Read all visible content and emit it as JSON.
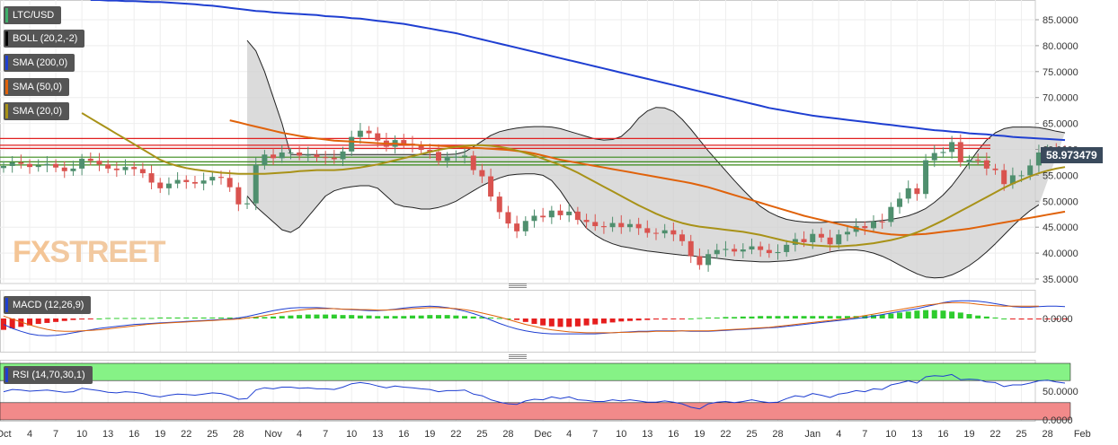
{
  "panel": {
    "symbol": "LTC/USD",
    "watermark_fx": "FX",
    "watermark_street": "STREET",
    "current_price": "58.973479",
    "indicators": [
      {
        "label": "BOLL (20,2,-2)",
        "color": "#000000"
      },
      {
        "label": "SMA (200,0)",
        "color": "#1f3fd1"
      },
      {
        "label": "SMA (50,0)",
        "color": "#e0620a"
      },
      {
        "label": "SMA (20,0)",
        "color": "#a89218"
      }
    ],
    "macd_label": "MACD (12,26,9)",
    "rsi_label": "RSI (14,70,30,1)"
  },
  "chart_data": [
    {
      "type": "candlestick",
      "title": "LTC/USD",
      "ylim": [
        35,
        89
      ],
      "y_ticks": [
        "85.0000",
        "80.0000",
        "75.0000",
        "70.0000",
        "65.0000",
        "60.0000",
        "55.0000",
        "50.0000",
        "45.0000",
        "40.0000",
        "35.0000"
      ],
      "y_tick_values": [
        85,
        80,
        75,
        70,
        65,
        60,
        55,
        50,
        45,
        40,
        35
      ],
      "x_ticks": [
        "Oct",
        "4",
        "7",
        "10",
        "13",
        "16",
        "19",
        "22",
        "25",
        "28",
        "Nov",
        "4",
        "7",
        "10",
        "13",
        "16",
        "19",
        "22",
        "25",
        "28",
        "Dec",
        "4",
        "7",
        "10",
        "13",
        "16",
        "19",
        "22",
        "25",
        "28",
        "Jan",
        "4",
        "7",
        "10",
        "13",
        "16",
        "19",
        "22",
        "25",
        "28",
        "Feb"
      ],
      "x_tick_index": [
        0,
        3,
        6,
        9,
        12,
        15,
        18,
        21,
        24,
        27,
        31,
        34,
        37,
        40,
        43,
        46,
        49,
        52,
        55,
        58,
        62,
        65,
        68,
        71,
        74,
        77,
        80,
        83,
        86,
        89,
        93,
        96,
        99,
        102,
        105,
        108,
        111,
        114,
        117,
        120,
        124
      ],
      "close": [
        56.8,
        57.5,
        57.2,
        56.6,
        56.9,
        57.2,
        56.5,
        55.8,
        56.3,
        58.2,
        57.8,
        57.1,
        56.3,
        56.0,
        56.6,
        56.2,
        55.4,
        53.6,
        52.5,
        53.4,
        54.1,
        53.7,
        53.4,
        54.0,
        54.7,
        54.5,
        52.7,
        49.4,
        49.6,
        57.0,
        59.0,
        58.3,
        59.4,
        59.4,
        58.8,
        59.0,
        58.5,
        58.4,
        58.1,
        59.6,
        62.4,
        63.6,
        63.1,
        61.7,
        60.5,
        61.8,
        61.1,
        60.7,
        59.9,
        59.5,
        57.8,
        58.6,
        58.6,
        58.8,
        56.0,
        54.8,
        50.9,
        47.9,
        45.7,
        44.2,
        46.2,
        47.2,
        46.9,
        48.2,
        47.3,
        48.0,
        46.4,
        46.0,
        45.2,
        45.0,
        45.8,
        45.0,
        45.6,
        44.8,
        43.9,
        43.8,
        44.4,
        43.6,
        42.3,
        39.4,
        37.7,
        39.8,
        40.6,
        40.8,
        40.3,
        40.7,
        41.3,
        40.6,
        40.0,
        40.2,
        41.6,
        42.7,
        42.1,
        43.7,
        43.0,
        41.7,
        43.6,
        44.1,
        45.2,
        44.8,
        46.1,
        46.0,
        48.9,
        50.5,
        52.5,
        51.4,
        57.9,
        59.3,
        59.5,
        61.4,
        57.5,
        58.0,
        57.9,
        56.3,
        56.0,
        53.3,
        55.0,
        55.0,
        56.9,
        59.4,
        60.0,
        59.3,
        58.97
      ],
      "sma_200": [
        88.8,
        88.8,
        88.7,
        88.7,
        88.6,
        88.6,
        88.5,
        88.4,
        88.4,
        88.3,
        88.2,
        88.1,
        88.0,
        87.8,
        87.7,
        87.5,
        87.3,
        87.1,
        86.9,
        86.7,
        86.6,
        86.4,
        86.3,
        86.2,
        86.1,
        86.0,
        85.9,
        85.7,
        85.6,
        85.5,
        85.3,
        85.2,
        85.0,
        84.8,
        84.6,
        84.4,
        84.2,
        83.9,
        83.6,
        83.3,
        83.0,
        82.7,
        82.4,
        82.0,
        81.6,
        81.2,
        80.8,
        80.4,
        80.0,
        79.6,
        79.2,
        78.8,
        78.4,
        78.0,
        77.6,
        77.2,
        76.8,
        76.4,
        76.0,
        75.6,
        75.2,
        74.8,
        74.4,
        74.0,
        73.6,
        73.2,
        72.8,
        72.4,
        72.0,
        71.6,
        71.2,
        70.8,
        70.4,
        70.0,
        69.6,
        69.2,
        68.8,
        68.4,
        68.0,
        67.7,
        67.4,
        67.1,
        66.8,
        66.5,
        66.3,
        66.1,
        65.9,
        65.7,
        65.5,
        65.3,
        65.1,
        64.9,
        64.7,
        64.5,
        64.3,
        64.1,
        63.9,
        63.7,
        63.6,
        63.4,
        63.3,
        63.1,
        63.0,
        62.9,
        62.7,
        62.6,
        62.4,
        62.3,
        62.2,
        62.1,
        62.0,
        61.9,
        61.8
      ],
      "sma_50": [
        65.6,
        65.2,
        64.8,
        64.4,
        64.0,
        63.6,
        63.2,
        62.9,
        62.6,
        62.3,
        62.1,
        61.9,
        61.7,
        61.6,
        61.5,
        61.4,
        61.3,
        61.2,
        61.1,
        61.1,
        61.0,
        60.9,
        60.8,
        60.8,
        60.7,
        60.6,
        60.5,
        60.4,
        60.3,
        60.2,
        60.1,
        60.0,
        59.9,
        59.7,
        59.5,
        59.2,
        58.8,
        58.4,
        58.0,
        57.7,
        57.4,
        57.1,
        56.8,
        56.5,
        56.2,
        55.9,
        55.6,
        55.3,
        55.0,
        54.7,
        54.4,
        54.1,
        53.8,
        53.5,
        53.1,
        52.7,
        52.2,
        51.7,
        51.2,
        50.7,
        50.2,
        49.7,
        49.2,
        48.7,
        48.2,
        47.7,
        47.2,
        46.8,
        46.4,
        46.0,
        45.6,
        45.2,
        44.8,
        44.4,
        44.1,
        43.8,
        43.6,
        43.5,
        43.5,
        43.6,
        43.7,
        43.9,
        44.1,
        44.3,
        44.5,
        44.7,
        45.0,
        45.3,
        45.6,
        45.9,
        46.2,
        46.5,
        46.8,
        47.1,
        47.4,
        47.7,
        48.0
      ],
      "sma_20": [
        67.0,
        66.0,
        65.0,
        64.0,
        63.0,
        62.0,
        61.0,
        60.0,
        59.0,
        58.0,
        57.3,
        56.8,
        56.4,
        56.1,
        55.9,
        55.7,
        55.5,
        55.4,
        55.3,
        55.3,
        55.3,
        55.3,
        55.4,
        55.5,
        55.6,
        55.8,
        55.9,
        56.0,
        56.0,
        56.0,
        56.1,
        56.3,
        56.5,
        56.8,
        57.1,
        57.5,
        57.9,
        58.3,
        58.7,
        59.1,
        59.5,
        59.9,
        60.2,
        60.5,
        60.7,
        60.8,
        60.8,
        60.7,
        60.5,
        60.2,
        59.8,
        59.3,
        58.8,
        58.2,
        57.6,
        57.0,
        56.3,
        55.5,
        54.6,
        53.7,
        52.8,
        51.9,
        51.0,
        50.1,
        49.2,
        48.4,
        47.6,
        46.9,
        46.3,
        45.8,
        45.4,
        45.1,
        44.9,
        44.7,
        44.5,
        44.3,
        44.1,
        43.8,
        43.5,
        43.1,
        42.7,
        42.3,
        42.0,
        41.7,
        41.5,
        41.4,
        41.3,
        41.3,
        41.4,
        41.5,
        41.7,
        41.9,
        42.2,
        42.5,
        42.9,
        43.4,
        44.0,
        44.7,
        45.5,
        46.3,
        47.2,
        48.1,
        49.0,
        49.9,
        50.8,
        51.7,
        52.6,
        53.4,
        54.1,
        54.8,
        55.4,
        55.9,
        56.3,
        56.6
      ],
      "boll_upper": [
        81.0,
        79.0,
        75.0,
        70.0,
        65.0,
        59.0,
        59.0,
        59.0,
        59.0,
        59.0,
        59.0,
        59.0,
        59.0,
        59.0,
        59.0,
        59.0,
        59.0,
        59.0,
        59.0,
        59.0,
        59.0,
        59.0,
        59.0,
        59.0,
        59.1,
        59.5,
        60.5,
        61.6,
        62.7,
        63.4,
        63.8,
        64.1,
        64.3,
        64.4,
        64.4,
        64.3,
        64.0,
        63.5,
        63.0,
        62.5,
        62.0,
        61.8,
        61.9,
        62.5,
        64.0,
        66.0,
        67.4,
        68.1,
        68.0,
        67.3,
        65.8,
        63.9,
        61.8,
        59.7,
        57.8,
        55.9,
        54.0,
        52.2,
        50.5,
        49.0,
        47.9,
        47.1,
        46.5,
        46.2,
        46.0,
        45.9,
        45.9,
        46.0,
        46.0,
        46.0,
        46.0,
        46.0,
        46.1,
        46.3,
        46.5,
        46.8,
        47.2,
        47.8,
        48.6,
        49.8,
        51.2,
        53.0,
        55.2,
        57.5,
        59.8,
        61.8,
        63.2,
        64.0,
        64.3,
        64.3,
        64.3,
        64.2,
        63.9,
        63.5,
        63.2
      ],
      "boll_lower": [
        51.0,
        49.0,
        47.5,
        46.0,
        44.5,
        44.0,
        45.0,
        47.0,
        49.0,
        51.0,
        52.0,
        52.5,
        52.8,
        53.0,
        53.0,
        52.5,
        51.0,
        49.5,
        49.0,
        48.8,
        48.5,
        48.5,
        48.8,
        49.3,
        50.0,
        51.0,
        52.0,
        53.0,
        53.8,
        54.5,
        55.0,
        55.2,
        55.3,
        55.3,
        55.0,
        54.0,
        52.0,
        49.5,
        47.0,
        44.8,
        43.5,
        42.5,
        41.8,
        41.3,
        41.0,
        40.7,
        40.4,
        40.2,
        40.0,
        39.8,
        39.6,
        39.5,
        39.3,
        39.2,
        39.0,
        38.8,
        38.6,
        38.5,
        38.4,
        38.3,
        38.3,
        38.4,
        38.5,
        38.7,
        39.0,
        39.4,
        39.8,
        40.2,
        40.5,
        40.6,
        40.6,
        40.4,
        40.0,
        39.4,
        38.6,
        37.7,
        36.8,
        36.0,
        35.4,
        35.2,
        35.3,
        35.8,
        36.6,
        37.6,
        38.8,
        40.2,
        41.8,
        43.5,
        45.2,
        46.8,
        48.2,
        49.3
      ],
      "horizontal_levels_red": [
        62.1,
        60.8,
        60.2
      ],
      "horizontal_levels_green": [
        58.5,
        57.6,
        57.0
      ],
      "current_price": 58.973479
    },
    {
      "type": "histogram+line",
      "title": "MACD (12,26,9)",
      "y_ticks": [
        "0.0000"
      ],
      "histogram": [
        -2.3,
        -2.0,
        -1.7,
        -1.4,
        -1.1,
        -0.9,
        -0.7,
        -0.5,
        -0.3,
        -0.2,
        -0.1,
        0.0,
        0.1,
        0.1,
        0.1,
        0.1,
        0.1,
        0.1,
        0.2,
        0.2,
        0.2,
        0.2,
        0.2,
        0.2,
        0.2,
        0.2,
        0.2,
        0.2,
        0.2,
        0.3,
        0.3,
        0.4,
        0.5,
        0.6,
        0.7,
        0.8,
        0.8,
        0.8,
        0.8,
        0.7,
        0.7,
        0.6,
        0.6,
        0.5,
        0.5,
        0.5,
        0.5,
        0.6,
        0.6,
        0.7,
        0.7,
        0.7,
        0.6,
        0.5,
        0.4,
        0.3,
        0.2,
        0.1,
        0.0,
        -0.3,
        -0.7,
        -1.1,
        -1.4,
        -1.6,
        -1.7,
        -1.7,
        -1.6,
        -1.4,
        -1.2,
        -1.0,
        -0.8,
        -0.6,
        -0.5,
        -0.4,
        -0.3,
        -0.2,
        -0.2,
        -0.1,
        -0.1,
        0.0,
        0.1,
        0.2,
        0.2,
        0.3,
        0.3,
        0.4,
        0.4,
        0.5,
        0.5,
        0.5,
        0.5,
        0.5,
        0.5,
        0.5,
        0.5,
        0.5,
        0.5,
        0.5,
        0.5,
        0.6,
        0.7,
        0.8,
        1.0,
        1.2,
        1.4,
        1.6,
        1.7,
        1.7,
        1.6,
        1.4,
        1.2,
        0.9,
        0.6,
        0.4,
        0.2,
        0.0,
        -0.1,
        -0.2,
        -0.2,
        -0.1,
        -0.1,
        -0.1,
        -0.1
      ],
      "macd": [
        -1.2,
        -2.0,
        -2.6,
        -3.1,
        -3.4,
        -3.5,
        -3.4,
        -3.2,
        -2.9,
        -2.6,
        -2.3,
        -2.0,
        -1.8,
        -1.6,
        -1.4,
        -1.2,
        -1.1,
        -1.0,
        -0.9,
        -0.8,
        -0.7,
        -0.6,
        -0.5,
        -0.4,
        -0.3,
        -0.2,
        -0.1,
        0.1,
        0.4,
        0.8,
        1.2,
        1.6,
        1.9,
        2.1,
        2.2,
        2.2,
        2.2,
        2.1,
        2.0,
        1.9,
        1.8,
        1.7,
        1.6,
        1.6,
        1.7,
        1.9,
        2.1,
        2.3,
        2.4,
        2.5,
        2.4,
        2.2,
        1.9,
        1.5,
        1.0,
        0.4,
        -0.3,
        -1.0,
        -1.6,
        -2.1,
        -2.5,
        -2.8,
        -3.0,
        -3.1,
        -3.1,
        -3.1,
        -3.1,
        -3.1,
        -3.1,
        -3.0,
        -2.9,
        -2.8,
        -2.7,
        -2.6,
        -2.6,
        -2.5,
        -2.5,
        -2.5,
        -2.5,
        -2.6,
        -2.6,
        -2.6,
        -2.5,
        -2.4,
        -2.3,
        -2.2,
        -2.1,
        -2.0,
        -1.9,
        -1.8,
        -1.6,
        -1.4,
        -1.2,
        -1.0,
        -0.8,
        -0.6,
        -0.4,
        -0.2,
        0.0,
        0.2,
        0.5,
        0.8,
        1.1,
        1.4,
        1.7,
        2.0,
        2.4,
        2.8,
        3.2,
        3.5,
        3.6,
        3.6,
        3.5,
        3.3,
        3.0,
        2.7,
        2.4,
        2.3,
        2.3,
        2.4,
        2.5,
        2.5,
        2.4
      ],
      "signal": [
        0.5,
        -0.1,
        -0.7,
        -1.3,
        -1.8,
        -2.2,
        -2.5,
        -2.6,
        -2.6,
        -2.5,
        -2.4,
        -2.3,
        -2.1,
        -1.9,
        -1.7,
        -1.5,
        -1.3,
        -1.1,
        -1.0,
        -0.9,
        -0.8,
        -0.7,
        -0.6,
        -0.5,
        -0.4,
        -0.3,
        -0.2,
        -0.1,
        0.1,
        0.3,
        0.6,
        0.9,
        1.2,
        1.5,
        1.7,
        1.9,
        2.0,
        2.0,
        2.0,
        1.9,
        1.9,
        1.8,
        1.8,
        1.7,
        1.7,
        1.8,
        1.9,
        2.0,
        2.1,
        2.2,
        2.2,
        2.1,
        2.0,
        1.8,
        1.5,
        1.1,
        0.7,
        0.3,
        -0.2,
        -0.7,
        -1.2,
        -1.6,
        -2.0,
        -2.3,
        -2.5,
        -2.7,
        -2.8,
        -2.9,
        -2.9,
        -2.9,
        -2.9,
        -2.8,
        -2.8,
        -2.7,
        -2.7,
        -2.6,
        -2.6,
        -2.6,
        -2.5,
        -2.5,
        -2.5,
        -2.5,
        -2.4,
        -2.3,
        -2.2,
        -2.1,
        -2.0,
        -1.9,
        -1.8,
        -1.6,
        -1.4,
        -1.2,
        -1.0,
        -0.8,
        -0.6,
        -0.4,
        -0.2,
        0.0,
        0.3,
        0.6,
        0.9,
        1.2,
        1.5,
        1.8,
        2.1,
        2.4,
        2.7,
        2.9,
        3.1,
        3.2,
        3.2,
        3.1,
        2.9,
        2.7,
        2.6,
        2.5,
        2.5,
        2.5,
        2.5,
        2.5
      ]
    },
    {
      "type": "line",
      "title": "RSI (14,70,30,1)",
      "y_ticks": [
        "50.0000",
        "0.0000"
      ],
      "ylim": [
        0,
        100
      ],
      "overbought": 70,
      "oversold": 30,
      "values": [
        49.0,
        53.0,
        52.0,
        50.0,
        51.0,
        52.0,
        50.0,
        48.0,
        49.0,
        55.0,
        53.0,
        51.0,
        48.0,
        47.0,
        49.0,
        48.0,
        46.0,
        42.0,
        40.0,
        43.0,
        45.0,
        44.0,
        43.0,
        45.0,
        47.0,
        46.0,
        42.0,
        36.0,
        37.0,
        52.0,
        56.0,
        54.0,
        57.0,
        57.0,
        55.0,
        56.0,
        54.0,
        54.0,
        53.0,
        57.0,
        63.0,
        65.0,
        63.0,
        59.0,
        56.0,
        59.0,
        57.0,
        56.0,
        54.0,
        53.0,
        49.0,
        51.0,
        51.0,
        52.0,
        45.0,
        42.0,
        35.0,
        31.0,
        28.0,
        27.0,
        33.0,
        36.0,
        35.0,
        40.0,
        37.0,
        40.0,
        35.0,
        34.0,
        32.0,
        32.0,
        35.0,
        33.0,
        35.0,
        33.0,
        31.0,
        31.0,
        33.0,
        31.0,
        28.0,
        22.0,
        19.0,
        28.0,
        31.0,
        32.0,
        30.0,
        32.0,
        35.0,
        32.0,
        30.0,
        31.0,
        37.0,
        42.0,
        40.0,
        46.0,
        43.0,
        39.0,
        45.0,
        47.0,
        51.0,
        49.0,
        54.0,
        53.0,
        61.0,
        64.0,
        68.0,
        64.0,
        75.0,
        77.0,
        76.0,
        79.0,
        70.0,
        71.0,
        70.0,
        66.0,
        65.0,
        58.0,
        61.0,
        61.0,
        64.0,
        68.0,
        69.0,
        66.0,
        64.0
      ]
    }
  ]
}
